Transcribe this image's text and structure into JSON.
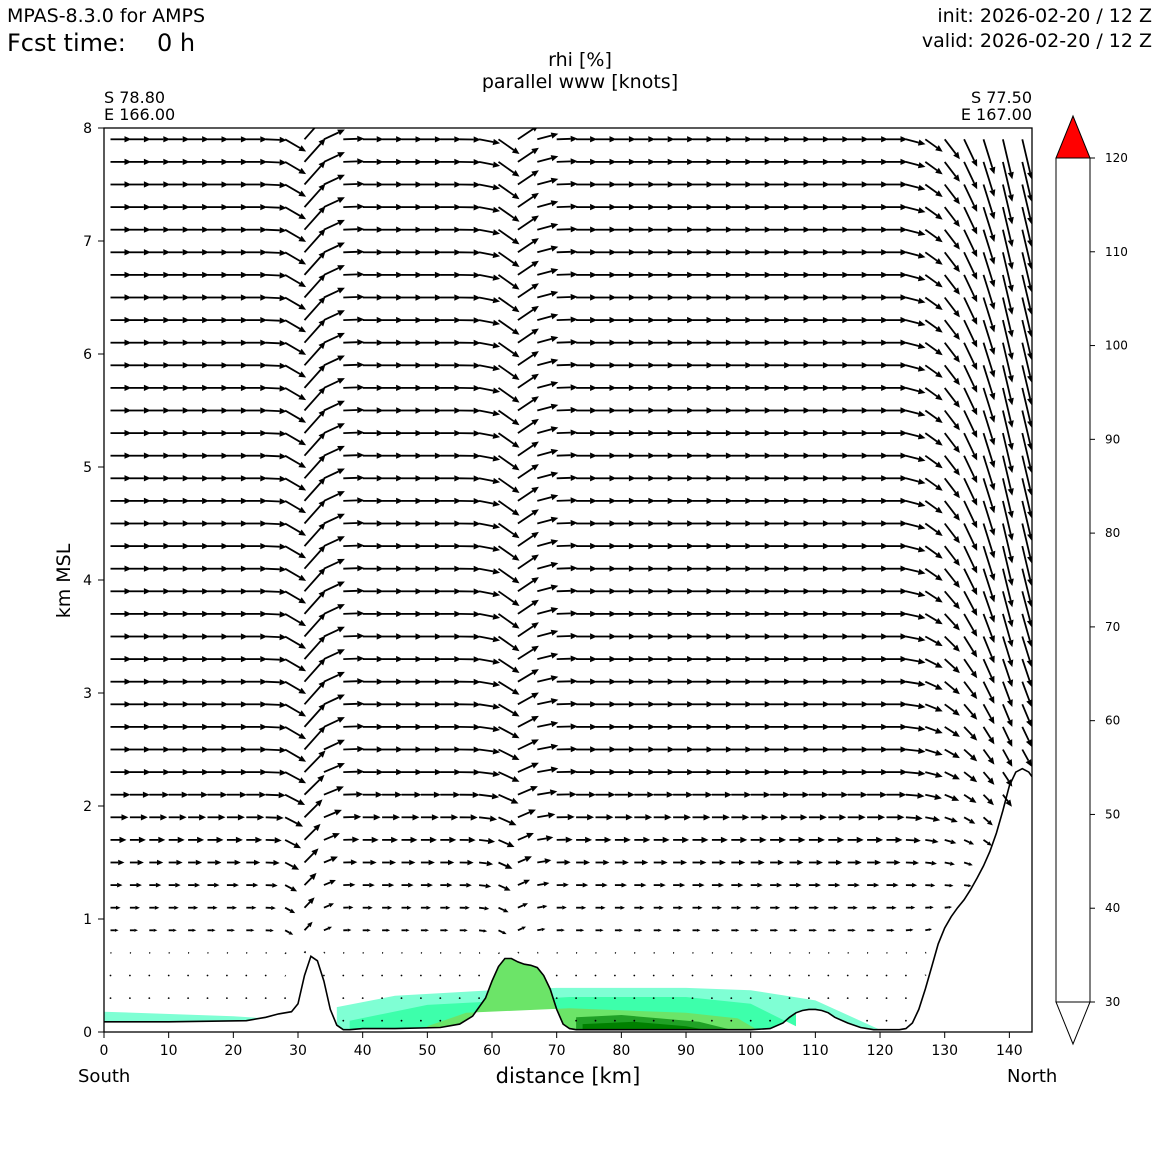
{
  "header": {
    "model": "MPAS-8.3.0 for AMPS",
    "fcst_label": "Fcst time:",
    "fcst_value": "0 h",
    "init": "init: 2026-02-20 / 12 Z",
    "valid": "valid: 2026-02-20 / 12 Z"
  },
  "title": {
    "line1": "rhi [%]",
    "line2": "parallel www [knots]"
  },
  "endpoints": {
    "left_lat": "S 78.80",
    "left_lon": "E 166.00",
    "right_lat": "S 77.50",
    "right_lon": "E 167.00"
  },
  "axes": {
    "ylabel": "km MSL",
    "xlabel": "distance [km]",
    "left_end": "South",
    "right_end": "North"
  },
  "chart_data": {
    "type": "cross-section",
    "title": "rhi [%] / parallel www [knots]",
    "xlabel": "distance [km]",
    "ylabel": "km MSL",
    "xlim": [
      0,
      143.5
    ],
    "ylim": [
      0,
      8
    ],
    "xticks": [
      0,
      10,
      20,
      30,
      40,
      50,
      60,
      70,
      80,
      90,
      100,
      110,
      120,
      130,
      140
    ],
    "yticks": [
      0,
      1,
      2,
      3,
      4,
      5,
      6,
      7,
      8
    ],
    "terrain": {
      "x": [
        0,
        10,
        22,
        25,
        27,
        29,
        30,
        31,
        32,
        33,
        34,
        35,
        36,
        37,
        38,
        40,
        45,
        52,
        55,
        57,
        59,
        60,
        61,
        62,
        63,
        64,
        65,
        66,
        67,
        68,
        69,
        70,
        71,
        72,
        73,
        75,
        80,
        90,
        100,
        103,
        105,
        106,
        107,
        108,
        109,
        110,
        111,
        112,
        113,
        115,
        117,
        119,
        121,
        123,
        124,
        125,
        126,
        127,
        128,
        129,
        130,
        131,
        132,
        133,
        134,
        135,
        136,
        137,
        138,
        139,
        140,
        141,
        142,
        143,
        143.5
      ],
      "y": [
        0.09,
        0.09,
        0.1,
        0.13,
        0.16,
        0.18,
        0.25,
        0.5,
        0.67,
        0.63,
        0.45,
        0.2,
        0.06,
        0.02,
        0.02,
        0.03,
        0.03,
        0.04,
        0.07,
        0.14,
        0.3,
        0.45,
        0.58,
        0.65,
        0.65,
        0.62,
        0.6,
        0.59,
        0.57,
        0.5,
        0.38,
        0.2,
        0.07,
        0.03,
        0.02,
        0.02,
        0.02,
        0.02,
        0.02,
        0.03,
        0.08,
        0.13,
        0.17,
        0.19,
        0.2,
        0.2,
        0.19,
        0.17,
        0.13,
        0.08,
        0.04,
        0.02,
        0.02,
        0.02,
        0.03,
        0.08,
        0.2,
        0.38,
        0.58,
        0.78,
        0.92,
        1.02,
        1.1,
        1.17,
        1.26,
        1.36,
        1.47,
        1.6,
        1.76,
        1.96,
        2.18,
        2.3,
        2.33,
        2.3,
        2.26
      ]
    },
    "rhi_fill": [
      {
        "level": "40-50",
        "x": [
          0,
          20,
          25
        ],
        "top": [
          0.18,
          0.14,
          0.12
        ]
      },
      {
        "level": "40-50",
        "x": [
          36,
          45,
          60,
          70,
          90,
          100,
          110,
          120
        ],
        "top": [
          0.22,
          0.32,
          0.37,
          0.39,
          0.39,
          0.37,
          0.28,
          0.02
        ]
      },
      {
        "level": "50-60",
        "x": [
          38,
          50,
          60,
          72,
          90,
          100,
          107
        ],
        "top": [
          0.1,
          0.24,
          0.27,
          0.31,
          0.31,
          0.25,
          0.05
        ]
      },
      {
        "level": "60-70",
        "x": [
          50,
          56,
          72,
          90,
          98,
          101
        ],
        "top": [
          0.05,
          0.17,
          0.21,
          0.17,
          0.12,
          0.02
        ]
      },
      {
        "level": "70-80",
        "x": [
          73,
          80,
          92,
          97
        ],
        "top": [
          0.13,
          0.15,
          0.09,
          0.02
        ]
      },
      {
        "level": "80-90",
        "x": [
          74,
          82,
          90,
          93
        ],
        "top": [
          0.07,
          0.09,
          0.05,
          0.02
        ]
      }
    ],
    "wind_vectors": "parallel wind arrows (knots) on a regular 3 km x 0.2 km grid; strong along-section flow aloft, descending flow over the ridges near 31 km and 63 km, steep downslope flow above the northern plateau",
    "colorbar": {
      "label": "rhi [%]",
      "levels": [
        30,
        40,
        50,
        60,
        70,
        80,
        90,
        100,
        110,
        120
      ],
      "colors": [
        "#ffffff",
        "#7fffd4",
        "#3dffab",
        "#6ce468",
        "#20a126",
        "#008000",
        "#008000",
        "#744900",
        "#ff0000"
      ],
      "extend": "both"
    }
  }
}
